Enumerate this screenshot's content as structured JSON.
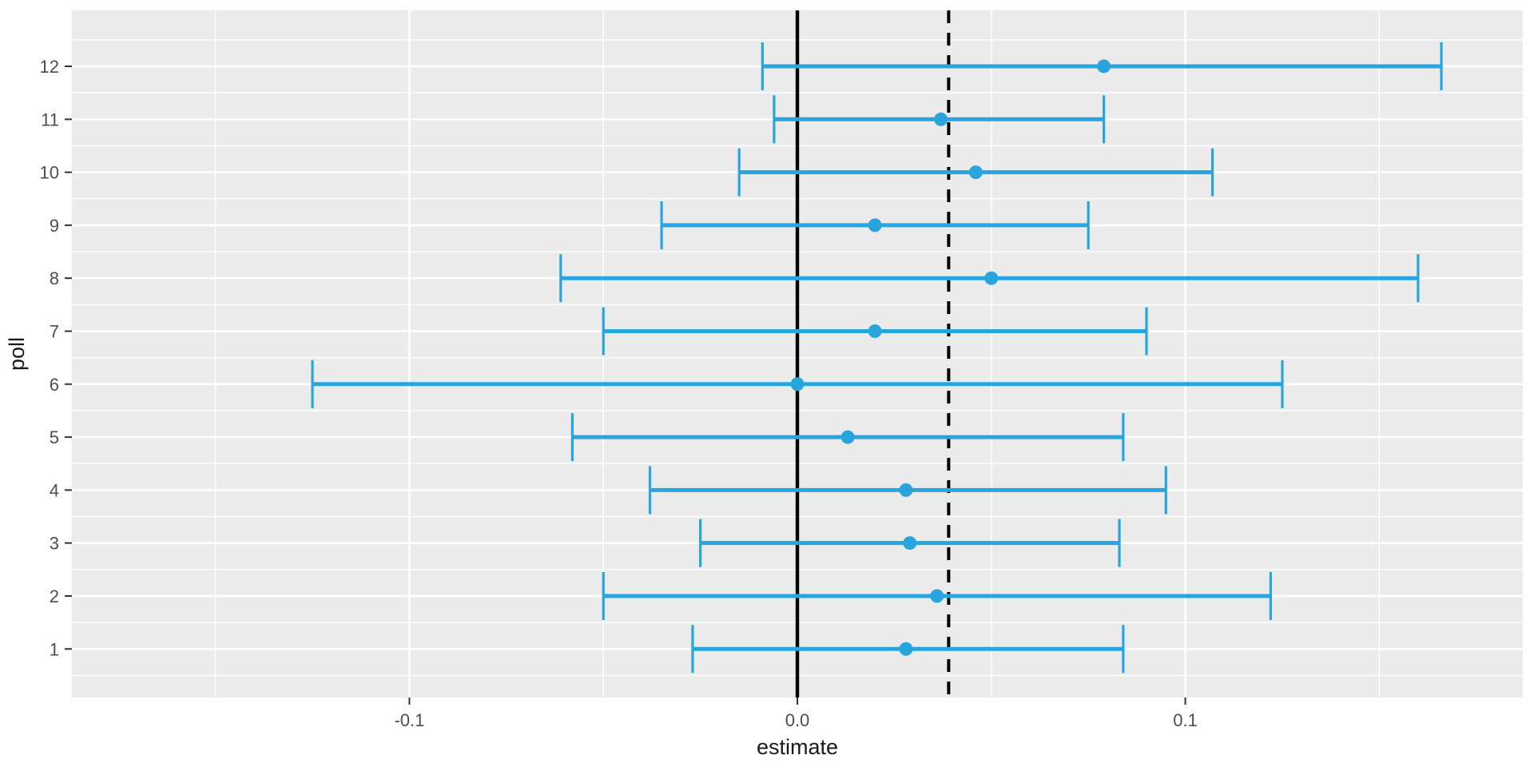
{
  "chart_data": {
    "type": "scatter",
    "subtype": "horizontal-errorbar-forest-plot",
    "title": "",
    "xlabel": "estimate",
    "ylabel": "poll",
    "xlim": [
      -0.187,
      0.187
    ],
    "ylim": [
      0.084,
      13.056
    ],
    "grid": true,
    "legend": false,
    "x_major_ticks": [
      -0.1,
      0.0,
      0.1
    ],
    "x_tick_labels": [
      "-0.1",
      "0.0",
      "0.1"
    ],
    "x_minor_ticks": [
      -0.15,
      -0.05,
      0.05,
      0.15
    ],
    "y_major_ticks": [
      1,
      2,
      3,
      4,
      5,
      6,
      7,
      8,
      9,
      10,
      11,
      12
    ],
    "y_tick_labels": [
      "1",
      "2",
      "3",
      "4",
      "5",
      "6",
      "7",
      "8",
      "9",
      "10",
      "11",
      "12"
    ],
    "y_minor_ticks": [
      0.5,
      1.5,
      2.5,
      3.5,
      4.5,
      5.5,
      6.5,
      7.5,
      8.5,
      9.5,
      10.5,
      11.5,
      12.5
    ],
    "reference_lines": [
      {
        "name": "zero-line",
        "x": 0.0,
        "style": "solid"
      },
      {
        "name": "dashed-reference-line",
        "x": 0.039,
        "style": "dashed"
      }
    ],
    "points": [
      {
        "poll": 1,
        "estimate": 0.028,
        "low": -0.027,
        "high": 0.084
      },
      {
        "poll": 2,
        "estimate": 0.036,
        "low": -0.05,
        "high": 0.122
      },
      {
        "poll": 3,
        "estimate": 0.029,
        "low": -0.025,
        "high": 0.083
      },
      {
        "poll": 4,
        "estimate": 0.028,
        "low": -0.038,
        "high": 0.095
      },
      {
        "poll": 5,
        "estimate": 0.013,
        "low": -0.058,
        "high": 0.084
      },
      {
        "poll": 6,
        "estimate": 0.0,
        "low": -0.125,
        "high": 0.125
      },
      {
        "poll": 7,
        "estimate": 0.02,
        "low": -0.05,
        "high": 0.09
      },
      {
        "poll": 8,
        "estimate": 0.05,
        "low": -0.061,
        "high": 0.16
      },
      {
        "poll": 9,
        "estimate": 0.02,
        "low": -0.035,
        "high": 0.075
      },
      {
        "poll": 10,
        "estimate": 0.046,
        "low": -0.015,
        "high": 0.107
      },
      {
        "poll": 11,
        "estimate": 0.037,
        "low": -0.006,
        "high": 0.079
      },
      {
        "poll": 12,
        "estimate": 0.079,
        "low": -0.009,
        "high": 0.166
      }
    ],
    "colors": {
      "series": "#27A5DC",
      "panel_background": "#EBEBEB",
      "gridline": "#FFFFFF",
      "reference_line": "#000000",
      "tick_mark": "#333333",
      "tick_label": "#4D4D4D",
      "axis_title": "#1A1A1A",
      "figure_background": "#FFFFFF"
    }
  }
}
